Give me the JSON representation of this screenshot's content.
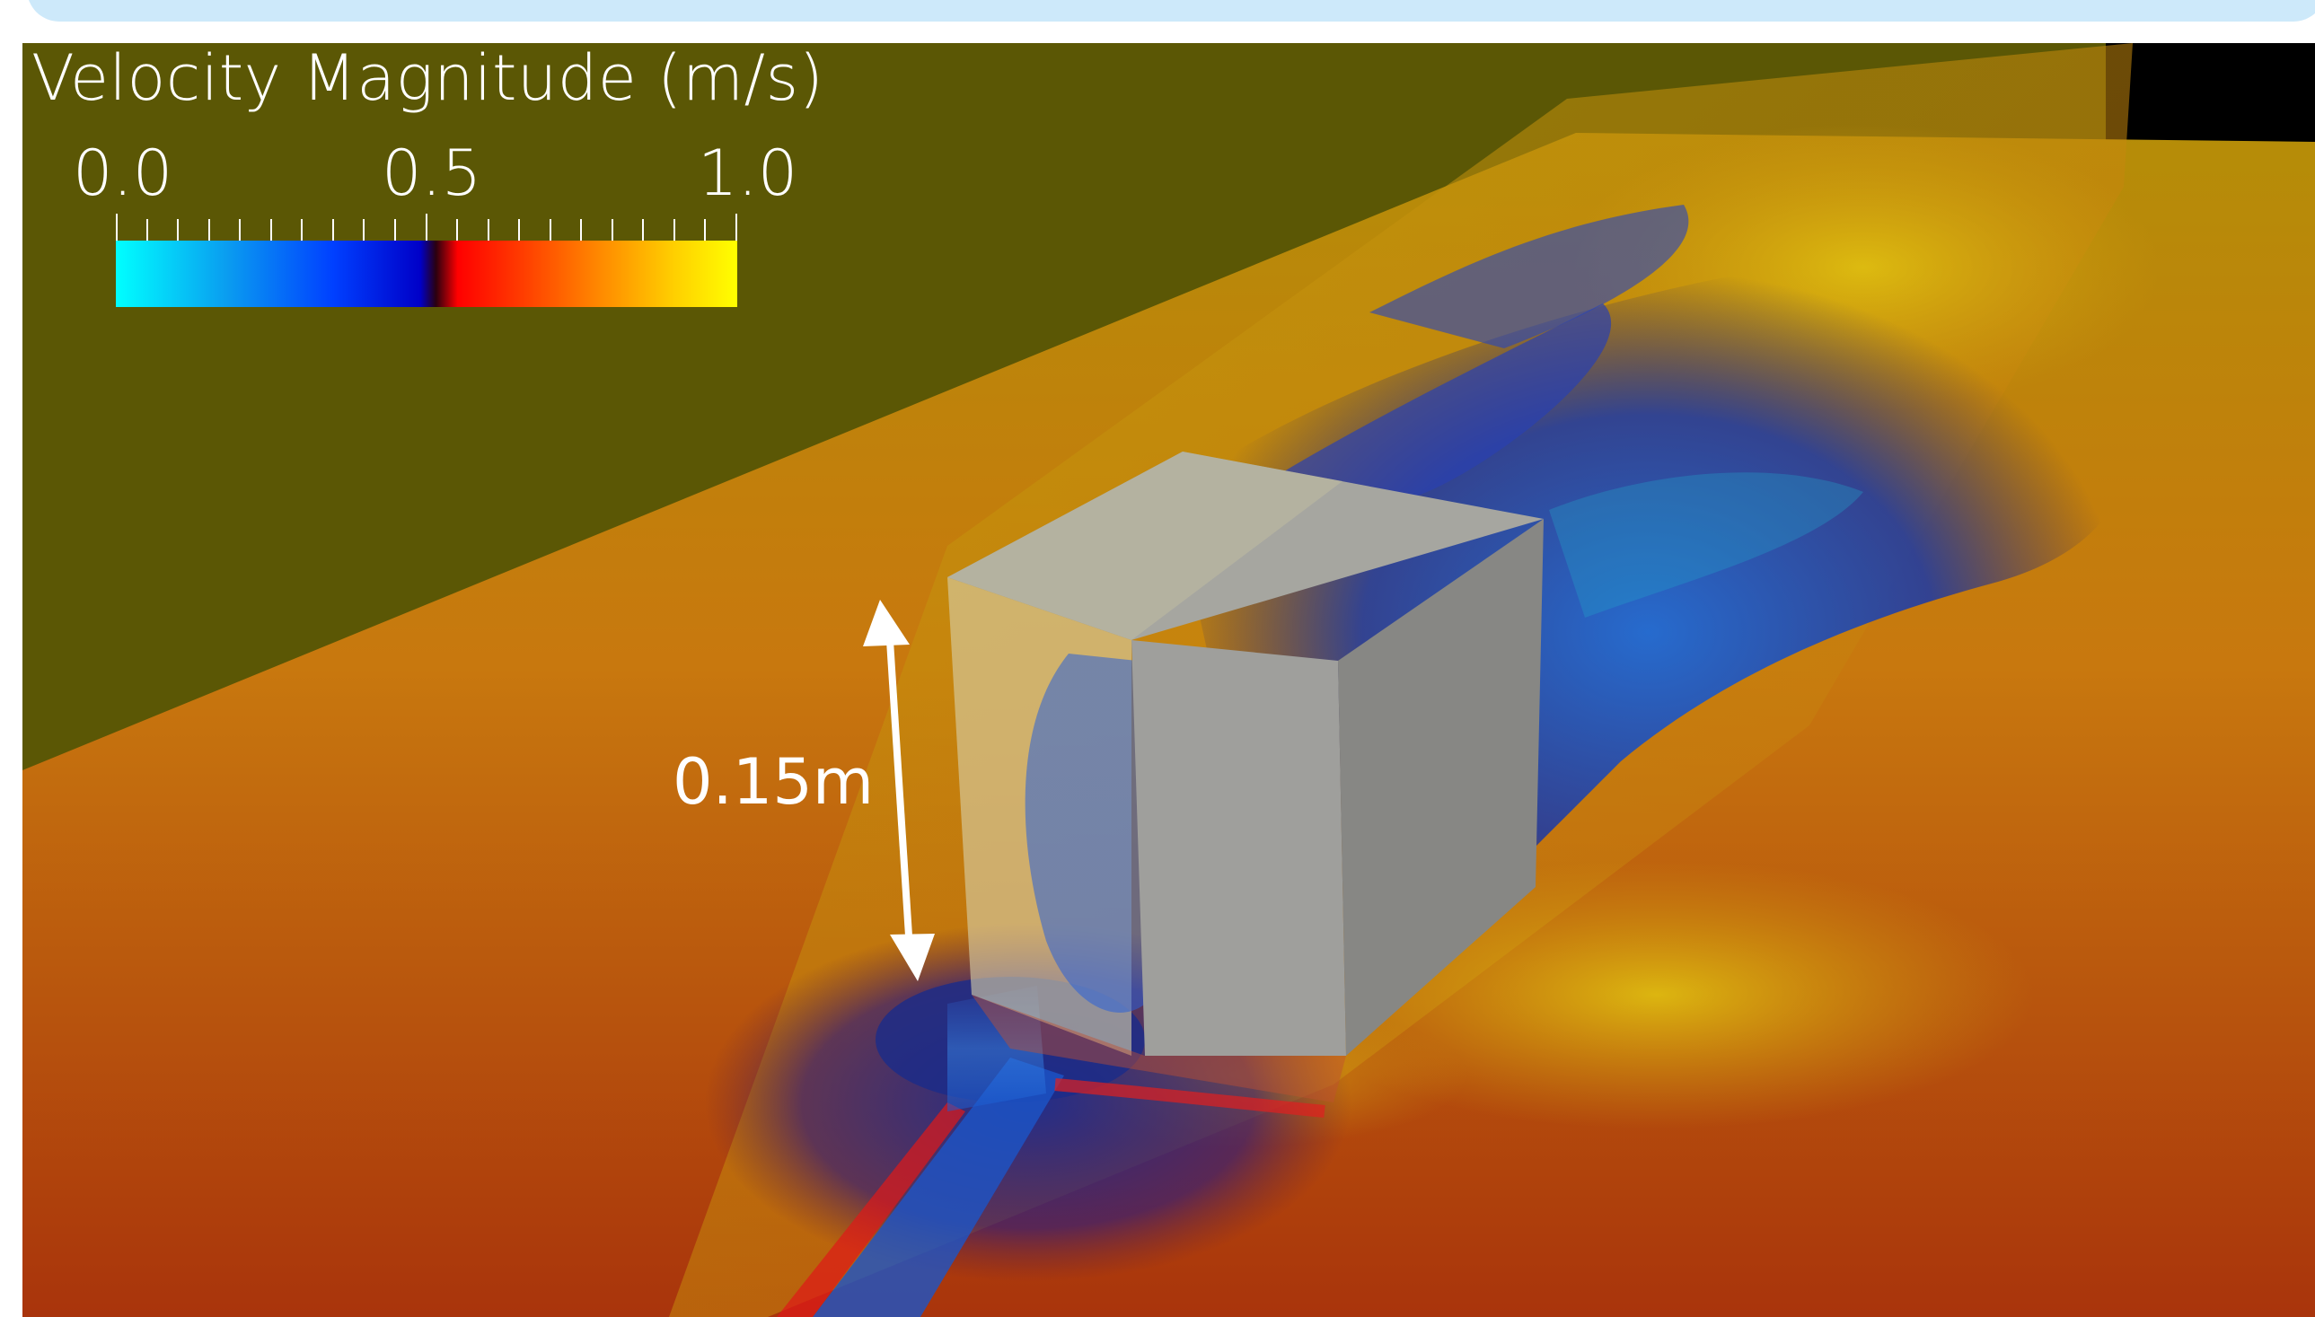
{
  "legend": {
    "title": "Velocity Magnitude (m/s)",
    "ticks": [
      "0.0",
      "0.5",
      "1.0"
    ],
    "range": [
      0.0,
      1.0
    ],
    "colormap": [
      "#00ffff",
      "#0040ff",
      "#0000c8",
      "#ff0000",
      "#ff8a00",
      "#ffff00"
    ]
  },
  "annotation": {
    "height_label": "0.15m"
  },
  "colors": {
    "background_wall": "#5b5705",
    "cube": "#a9a9a5",
    "arrow": "#ffffff",
    "top_banner": "#cde9fa"
  }
}
